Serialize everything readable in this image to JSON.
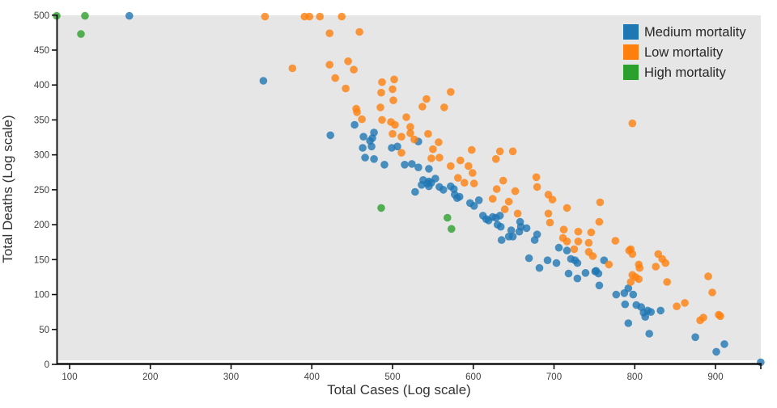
{
  "figure": {
    "background": "#ffffff",
    "panel_background": "#e6e6e6",
    "axis_color": "#111111",
    "tick_text_color": "#404040"
  },
  "legend": {
    "entries": [
      {
        "label": "Medium mortality",
        "color": "#1f77b4"
      },
      {
        "label": "Low mortality",
        "color": "#ff7f0e"
      },
      {
        "label": "High mortality",
        "color": "#2ca02c"
      }
    ]
  },
  "chart_data": {
    "type": "scatter",
    "title": "",
    "xlabel": "Total Cases (Log scale)",
    "ylabel": "Total Deaths (Log scale)",
    "xlim": [
      84,
      960
    ],
    "ylim": [
      0,
      500
    ],
    "xticks": [
      100,
      200,
      300,
      400,
      500,
      600,
      700,
      800,
      900
    ],
    "yticks": [
      0,
      50,
      100,
      150,
      200,
      250,
      300,
      350,
      400,
      450,
      500
    ],
    "grid": false,
    "legend_position": "upper right",
    "marker_opacity": 0.8,
    "series": [
      {
        "name": "Medium mortality",
        "color": "#1f77b4",
        "points": [
          [
            174,
            499
          ],
          [
            340,
            406
          ],
          [
            423,
            328
          ],
          [
            453,
            343
          ],
          [
            464,
            326
          ],
          [
            472,
            320
          ],
          [
            475,
            324
          ],
          [
            463,
            310
          ],
          [
            474,
            312
          ],
          [
            477,
            332
          ],
          [
            466,
            296
          ],
          [
            477,
            294
          ],
          [
            490,
            286
          ],
          [
            499,
            310
          ],
          [
            506,
            312
          ],
          [
            515,
            286
          ],
          [
            524,
            287
          ],
          [
            528,
            247
          ],
          [
            532,
            282
          ],
          [
            532,
            319
          ],
          [
            545,
            280
          ],
          [
            536,
            257
          ],
          [
            538,
            264
          ],
          [
            543,
            259
          ],
          [
            545,
            262
          ],
          [
            548,
            260
          ],
          [
            553,
            266
          ],
          [
            545,
            255
          ],
          [
            558,
            254
          ],
          [
            563,
            250
          ],
          [
            572,
            255
          ],
          [
            576,
            251
          ],
          [
            577,
            243
          ],
          [
            580,
            238
          ],
          [
            583,
            240
          ],
          [
            596,
            231
          ],
          [
            601,
            227
          ],
          [
            607,
            235
          ],
          [
            612,
            213
          ],
          [
            616,
            208
          ],
          [
            619,
            206
          ],
          [
            624,
            211
          ],
          [
            628,
            210
          ],
          [
            633,
            213
          ],
          [
            630,
            200
          ],
          [
            634,
            197
          ],
          [
            635,
            178
          ],
          [
            644,
            183
          ],
          [
            647,
            192
          ],
          [
            649,
            183
          ],
          [
            657,
            190
          ],
          [
            658,
            204
          ],
          [
            659,
            197
          ],
          [
            666,
            195
          ],
          [
            676,
            178
          ],
          [
            679,
            186
          ],
          [
            669,
            152
          ],
          [
            682,
            138
          ],
          [
            692,
            149
          ],
          [
            703,
            145
          ],
          [
            706,
            167
          ],
          [
            716,
            163
          ],
          [
            721,
            151
          ],
          [
            726,
            149
          ],
          [
            729,
            145
          ],
          [
            718,
            130
          ],
          [
            729,
            123
          ],
          [
            739,
            131
          ],
          [
            751,
            133
          ],
          [
            762,
            149
          ],
          [
            752,
            134
          ],
          [
            755,
            130
          ],
          [
            756,
            113
          ],
          [
            777,
            100
          ],
          [
            787,
            102
          ],
          [
            792,
            109
          ],
          [
            798,
            100
          ],
          [
            788,
            86
          ],
          [
            802,
            85
          ],
          [
            808,
            82
          ],
          [
            811,
            74
          ],
          [
            816,
            77
          ],
          [
            820,
            75
          ],
          [
            813,
            68
          ],
          [
            832,
            77
          ],
          [
            792,
            59
          ],
          [
            818,
            44
          ],
          [
            875,
            39
          ],
          [
            901,
            18
          ],
          [
            911,
            29
          ],
          [
            956,
            3
          ]
        ]
      },
      {
        "name": "Low mortality",
        "color": "#ff7f0e",
        "points": [
          [
            342,
            498
          ],
          [
            391,
            498
          ],
          [
            397,
            498
          ],
          [
            410,
            498
          ],
          [
            437,
            498
          ],
          [
            422,
            474
          ],
          [
            459,
            476
          ],
          [
            376,
            424
          ],
          [
            422,
            429
          ],
          [
            445,
            434
          ],
          [
            452,
            422
          ],
          [
            429,
            410
          ],
          [
            442,
            395
          ],
          [
            487,
            404
          ],
          [
            502,
            408
          ],
          [
            500,
            394
          ],
          [
            486,
            389
          ],
          [
            501,
            378
          ],
          [
            485,
            368
          ],
          [
            455,
            366
          ],
          [
            456,
            361
          ],
          [
            462,
            351
          ],
          [
            487,
            350
          ],
          [
            498,
            347
          ],
          [
            503,
            343
          ],
          [
            517,
            354
          ],
          [
            522,
            340
          ],
          [
            572,
            390
          ],
          [
            542,
            380
          ],
          [
            537,
            369
          ],
          [
            564,
            368
          ],
          [
            500,
            330
          ],
          [
            511,
            326
          ],
          [
            522,
            331
          ],
          [
            527,
            322
          ],
          [
            511,
            303
          ],
          [
            544,
            330
          ],
          [
            557,
            318
          ],
          [
            550,
            308
          ],
          [
            548,
            295
          ],
          [
            558,
            296
          ],
          [
            598,
            307
          ],
          [
            633,
            305
          ],
          [
            649,
            305
          ],
          [
            628,
            294
          ],
          [
            572,
            284
          ],
          [
            584,
            292
          ],
          [
            594,
            284
          ],
          [
            581,
            267
          ],
          [
            589,
            260
          ],
          [
            599,
            274
          ],
          [
            601,
            259
          ],
          [
            637,
            263
          ],
          [
            652,
            248
          ],
          [
            629,
            251
          ],
          [
            644,
            233
          ],
          [
            639,
            222
          ],
          [
            624,
            237
          ],
          [
            678,
            268
          ],
          [
            679,
            254
          ],
          [
            693,
            243
          ],
          [
            698,
            236
          ],
          [
            716,
            224
          ],
          [
            655,
            216
          ],
          [
            693,
            216
          ],
          [
            695,
            203
          ],
          [
            712,
            193
          ],
          [
            730,
            190
          ],
          [
            746,
            189
          ],
          [
            711,
            181
          ],
          [
            716,
            176
          ],
          [
            730,
            176
          ],
          [
            743,
            174
          ],
          [
            725,
            165
          ],
          [
            743,
            161
          ],
          [
            748,
            155
          ],
          [
            797,
            345
          ],
          [
            757,
            232
          ],
          [
            756,
            204
          ],
          [
            776,
            177
          ],
          [
            795,
            165
          ],
          [
            793,
            163
          ],
          [
            797,
            158
          ],
          [
            768,
            143
          ],
          [
            805,
            143
          ],
          [
            806,
            138
          ],
          [
            797,
            128
          ],
          [
            801,
            125
          ],
          [
            805,
            122
          ],
          [
            795,
            118
          ],
          [
            826,
            140
          ],
          [
            834,
            151
          ],
          [
            838,
            145
          ],
          [
            829,
            158
          ],
          [
            840,
            118
          ],
          [
            852,
            83
          ],
          [
            862,
            88
          ],
          [
            891,
            126
          ],
          [
            896,
            103
          ],
          [
            881,
            63
          ],
          [
            885,
            67
          ],
          [
            904,
            71
          ],
          [
            906,
            69
          ]
        ]
      },
      {
        "name": "High mortality",
        "color": "#2ca02c",
        "points": [
          [
            84,
            499
          ],
          [
            119,
            499
          ],
          [
            114,
            473
          ],
          [
            486,
            224
          ],
          [
            568,
            210
          ],
          [
            573,
            194
          ]
        ]
      }
    ]
  }
}
